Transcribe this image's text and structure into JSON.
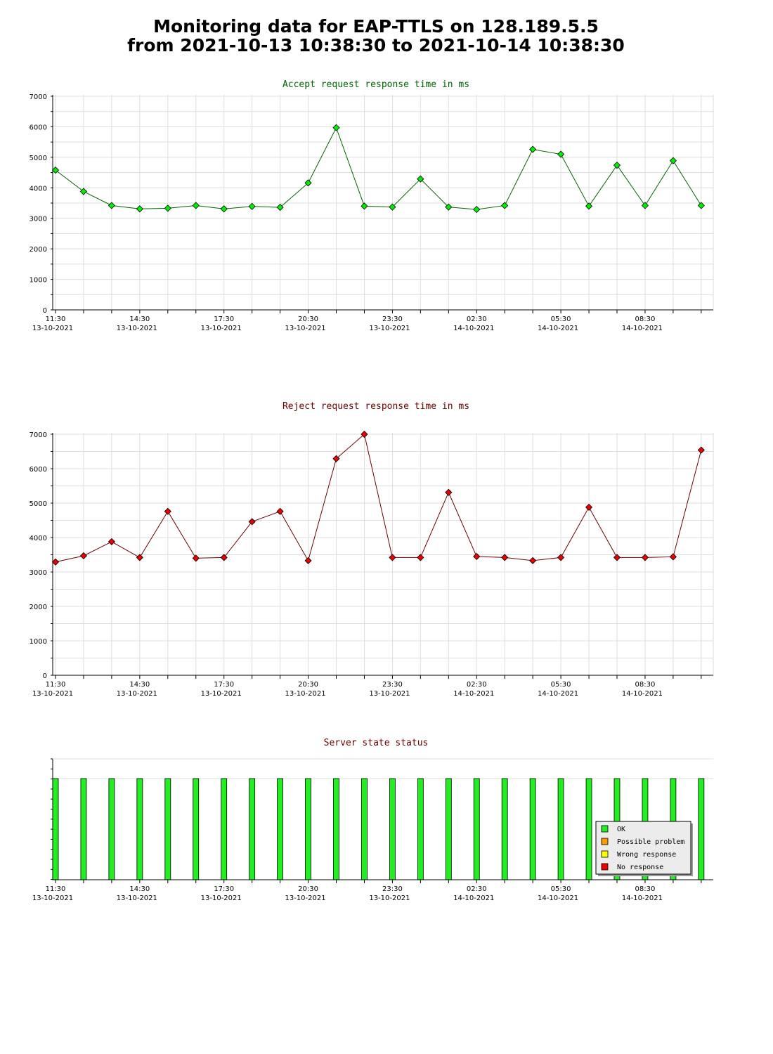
{
  "page": {
    "title_line1": "Monitoring data for EAP-TTLS on 128.189.5.5",
    "title_line2": "from 2021-10-13 10:38:30 to 2021-10-14 10:38:30"
  },
  "colors": {
    "accept_line": "#006400",
    "accept_marker": "#00ee00",
    "reject_line": "#6b0000",
    "reject_marker": "#ee0000",
    "grid": "#dddddd",
    "ok": "#22ee22",
    "possible_problem": "#ff9900",
    "wrong_response": "#ffff00",
    "no_response": "#ee0000"
  },
  "x_ticks": [
    {
      "time": "11:30",
      "date": "13-10-2021"
    },
    {
      "time": "14:30",
      "date": "13-10-2021"
    },
    {
      "time": "17:30",
      "date": "13-10-2021"
    },
    {
      "time": "20:30",
      "date": "13-10-2021"
    },
    {
      "time": "23:30",
      "date": "13-10-2021"
    },
    {
      "time": "02:30",
      "date": "14-10-2021"
    },
    {
      "time": "05:30",
      "date": "14-10-2021"
    },
    {
      "time": "08:30",
      "date": "14-10-2021"
    }
  ],
  "chart_data": [
    {
      "type": "line",
      "title": "Accept request response time in ms",
      "x": [
        "2021-10-13 11:30",
        "2021-10-13 12:30",
        "2021-10-13 13:30",
        "2021-10-13 14:30",
        "2021-10-13 15:30",
        "2021-10-13 16:30",
        "2021-10-13 17:30",
        "2021-10-13 18:30",
        "2021-10-13 19:30",
        "2021-10-13 20:30",
        "2021-10-13 21:30",
        "2021-10-13 22:30",
        "2021-10-13 23:30",
        "2021-10-14 00:30",
        "2021-10-14 01:30",
        "2021-10-14 02:30",
        "2021-10-14 03:30",
        "2021-10-14 04:30",
        "2021-10-14 05:30",
        "2021-10-14 06:30",
        "2021-10-14 07:30",
        "2021-10-14 08:30",
        "2021-10-14 09:30",
        "2021-10-14 10:30"
      ],
      "values": [
        4580,
        3880,
        3420,
        3310,
        3330,
        3420,
        3310,
        3390,
        3360,
        4160,
        5970,
        3400,
        3370,
        4290,
        3370,
        3290,
        3420,
        5260,
        5100,
        3400,
        4740,
        3420,
        4890,
        3420
      ],
      "y_ticks": [
        "0",
        "1000",
        "2000",
        "3000",
        "4000",
        "5000",
        "6000",
        "7000"
      ],
      "ylim": [
        0,
        7000
      ],
      "grid": true
    },
    {
      "type": "line",
      "title": "Reject request response time in ms",
      "x": [
        "2021-10-13 11:30",
        "2021-10-13 12:30",
        "2021-10-13 13:30",
        "2021-10-13 14:30",
        "2021-10-13 15:30",
        "2021-10-13 16:30",
        "2021-10-13 17:30",
        "2021-10-13 18:30",
        "2021-10-13 19:30",
        "2021-10-13 20:30",
        "2021-10-13 21:30",
        "2021-10-13 22:30",
        "2021-10-13 23:30",
        "2021-10-14 00:30",
        "2021-10-14 01:30",
        "2021-10-14 02:30",
        "2021-10-14 03:30",
        "2021-10-14 04:30",
        "2021-10-14 05:30",
        "2021-10-14 06:30",
        "2021-10-14 07:30",
        "2021-10-14 08:30",
        "2021-10-14 09:30",
        "2021-10-14 10:30"
      ],
      "values": [
        3290,
        3470,
        3880,
        3420,
        4760,
        3400,
        3420,
        4460,
        4760,
        3330,
        6290,
        7000,
        3420,
        3420,
        5310,
        3450,
        3420,
        3330,
        3420,
        4880,
        3420,
        3420,
        3440,
        6540
      ],
      "y_ticks": [
        "0",
        "1000",
        "2000",
        "3000",
        "4000",
        "5000",
        "6000",
        "7000"
      ],
      "ylim": [
        0,
        7000
      ],
      "grid": true
    },
    {
      "type": "bar",
      "title": "Server state status",
      "x": [
        "2021-10-13 11:30",
        "2021-10-13 12:30",
        "2021-10-13 13:30",
        "2021-10-13 14:30",
        "2021-10-13 15:30",
        "2021-10-13 16:30",
        "2021-10-13 17:30",
        "2021-10-13 18:30",
        "2021-10-13 19:30",
        "2021-10-13 20:30",
        "2021-10-13 21:30",
        "2021-10-13 22:30",
        "2021-10-13 23:30",
        "2021-10-14 00:30",
        "2021-10-14 01:30",
        "2021-10-14 02:30",
        "2021-10-14 03:30",
        "2021-10-14 04:30",
        "2021-10-14 05:30",
        "2021-10-14 06:30",
        "2021-10-14 07:30",
        "2021-10-14 08:30",
        "2021-10-14 09:30",
        "2021-10-14 10:30"
      ],
      "status": [
        "OK",
        "OK",
        "OK",
        "OK",
        "OK",
        "OK",
        "OK",
        "OK",
        "OK",
        "OK",
        "OK",
        "OK",
        "OK",
        "OK",
        "OK",
        "OK",
        "OK",
        "OK",
        "OK",
        "OK",
        "OK",
        "OK",
        "OK",
        "OK"
      ],
      "legend": [
        {
          "label": "OK",
          "color": "#22ee22"
        },
        {
          "label": "Possible problem",
          "color": "#ff9900"
        },
        {
          "label": "Wrong response",
          "color": "#ffff00"
        },
        {
          "label": "No response",
          "color": "#ee0000"
        }
      ],
      "legend_position": "bottom-right"
    }
  ]
}
